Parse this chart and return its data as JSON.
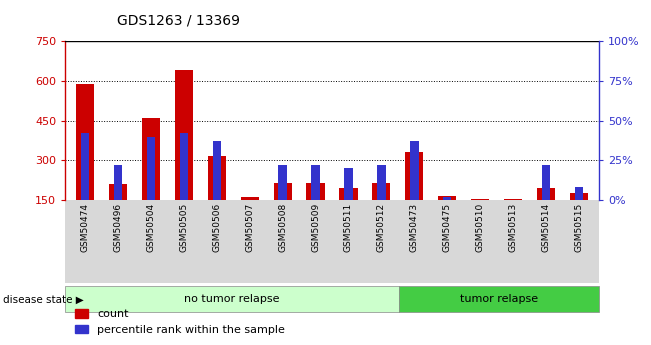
{
  "title": "GDS1263 / 13369",
  "samples": [
    "GSM50474",
    "GSM50496",
    "GSM50504",
    "GSM50505",
    "GSM50506",
    "GSM50507",
    "GSM50508",
    "GSM50509",
    "GSM50511",
    "GSM50512",
    "GSM50473",
    "GSM50475",
    "GSM50510",
    "GSM50513",
    "GSM50514",
    "GSM50515"
  ],
  "counts": [
    590,
    210,
    460,
    640,
    315,
    160,
    215,
    215,
    195,
    215,
    330,
    165,
    155,
    155,
    195,
    175
  ],
  "percentiles": [
    42,
    22,
    40,
    42,
    37,
    0,
    22,
    22,
    20,
    22,
    37,
    2,
    0,
    0,
    22,
    8
  ],
  "bar_color_red": "#cc0000",
  "bar_color_blue": "#3333cc",
  "ylim_left": [
    150,
    750
  ],
  "ylim_right": [
    0,
    100
  ],
  "yticks_left": [
    150,
    300,
    450,
    600,
    750
  ],
  "ytick_labels_left": [
    "150",
    "300",
    "450",
    "600",
    "750"
  ],
  "yticks_right": [
    0,
    25,
    50,
    75,
    100
  ],
  "ytick_labels_right": [
    "0%",
    "25%",
    "50%",
    "75%",
    "100%"
  ],
  "groups": [
    {
      "label": "no tumor relapse",
      "count": 10,
      "color": "#ccffcc"
    },
    {
      "label": "tumor relapse",
      "count": 6,
      "color": "#44cc44"
    }
  ],
  "group_label": "disease state",
  "legend_count": "count",
  "legend_pct": "percentile rank within the sample",
  "no_relapse_count": 10,
  "relapse_count": 6,
  "total_samples": 16
}
